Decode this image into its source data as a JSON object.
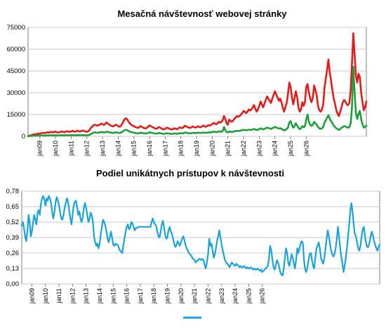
{
  "chart_data": [
    {
      "type": "line",
      "title": "Mesačná návštevnosť webovej stránky",
      "ylim": [
        0,
        75000
      ],
      "yticks": [
        0,
        15000,
        30000,
        45000,
        60000,
        75000
      ],
      "ytick_labels": [
        "0",
        "15000",
        "30000",
        "45000",
        "60000",
        "75000"
      ],
      "xlabels": [
        "jan09",
        "jan10",
        "jan11",
        "jan12",
        "jan13",
        "jan14",
        "jan15",
        "jan16",
        "jan17",
        "jan18",
        "jan19",
        "jan20",
        "jan21",
        "jan22",
        "jan23",
        "jan24",
        "jan25",
        "jan26"
      ],
      "x_start": "2008-04",
      "grid": true,
      "legend": "none",
      "series": [
        {
          "color": "#e31b1b",
          "values": [
            200,
            500,
            700,
            900,
            1200,
            1500,
            1300,
            1800,
            2000,
            1700,
            2100,
            2400,
            2300,
            2200,
            2600,
            2800,
            2500,
            2900,
            3100,
            2700,
            3000,
            3200,
            2800,
            2600,
            2900,
            3100,
            3400,
            3000,
            2800,
            3300,
            3500,
            3200,
            3000,
            3500,
            3800,
            3400,
            3200,
            3600,
            3900,
            3500,
            3300,
            3700,
            4000,
            3600,
            3400,
            3100,
            3500,
            4200,
            5800,
            6500,
            7500,
            8000,
            7800,
            7400,
            7600,
            8200,
            8700,
            8300,
            7900,
            8400,
            9500,
            8900,
            8200,
            7600,
            7200,
            6800,
            7300,
            8000,
            7600,
            7000,
            6600,
            7100,
            8500,
            10500,
            11800,
            12400,
            11500,
            10000,
            8800,
            8000,
            7400,
            7000,
            6500,
            6100,
            5800,
            6200,
            7000,
            6600,
            6000,
            5700,
            5400,
            5900,
            6800,
            7500,
            7100,
            6500,
            6000,
            5600,
            5200,
            5500,
            6400,
            6000,
            5500,
            5000,
            4800,
            5200,
            6000,
            5700,
            5300,
            5000,
            4700,
            5000,
            5600,
            5200,
            4900,
            5400,
            6200,
            5900,
            5600,
            6300,
            7300,
            6900,
            6400,
            6000,
            5800,
            6200,
            6800,
            6400,
            6000,
            6300,
            6900,
            6500,
            6200,
            6700,
            7400,
            7000,
            6600,
            7100,
            7700,
            7400,
            7800,
            8500,
            9200,
            8800,
            8300,
            8800,
            10000,
            9400,
            9900,
            11000,
            14000,
            12000,
            9000,
            8000,
            11500,
            10500,
            10000,
            11000,
            12000,
            13000,
            14000,
            13500,
            14000,
            15000,
            16000,
            17500,
            16800,
            16000,
            17000,
            18500,
            17800,
            18500,
            20000,
            21500,
            19000,
            17000,
            18500,
            21000,
            24000,
            22000,
            20000,
            22500,
            25000,
            27500,
            26000,
            24500,
            23000,
            26000,
            28500,
            31000,
            29000,
            26500,
            24500,
            26000,
            23500,
            20000,
            17000,
            20000,
            23000,
            29000,
            37000,
            34000,
            27000,
            22000,
            26000,
            31000,
            27000,
            20000,
            17000,
            18500,
            23500,
            21000,
            23500,
            34000,
            36000,
            30000,
            26000,
            23500,
            26500,
            35000,
            32000,
            28000,
            21000,
            18000,
            17000,
            18500,
            22000,
            33500,
            40000,
            46500,
            53000,
            44000,
            38000,
            32000,
            26000,
            22500,
            18000,
            15500,
            14000,
            17000,
            20000,
            23500,
            25000,
            24000,
            22000,
            21500,
            23000,
            32000,
            50000,
            71000,
            56000,
            42000,
            37000,
            43000,
            41000,
            30000,
            24000,
            18000,
            20000,
            24000
          ],
          "note": ""
        },
        {
          "color": "#1f9e3c",
          "values": [
            100,
            200,
            300,
            350,
            400,
            500,
            450,
            550,
            600,
            500,
            600,
            650,
            600,
            550,
            650,
            700,
            600,
            700,
            750,
            650,
            700,
            750,
            650,
            600,
            700,
            750,
            800,
            700,
            650,
            750,
            800,
            750,
            700,
            800,
            850,
            750,
            700,
            800,
            850,
            800,
            750,
            800,
            850,
            800,
            750,
            700,
            800,
            1000,
            1500,
            2000,
            2500,
            2800,
            2600,
            2400,
            2500,
            2800,
            3000,
            2800,
            2600,
            2800,
            3200,
            3000,
            2800,
            2600,
            2500,
            2300,
            2500,
            2800,
            2600,
            2400,
            2300,
            2500,
            3000,
            3800,
            4200,
            4500,
            4200,
            3600,
            3200,
            2900,
            2700,
            2500,
            2300,
            2200,
            2100,
            2200,
            2500,
            2400,
            2200,
            2100,
            2000,
            2100,
            2400,
            2700,
            2500,
            2300,
            2200,
            2000,
            1900,
            2000,
            2300,
            2200,
            2000,
            1800,
            1700,
            1900,
            2100,
            2000,
            1900,
            1800,
            1700,
            1800,
            2000,
            1900,
            1800,
            1900,
            2200,
            2100,
            2000,
            2200,
            2600,
            2500,
            2300,
            2200,
            2100,
            2200,
            2400,
            2300,
            2200,
            2300,
            2500,
            2400,
            2300,
            2400,
            2600,
            2500,
            2400,
            2500,
            2700,
            2600,
            2700,
            3000,
            3200,
            3100,
            2900,
            3000,
            3400,
            3200,
            3300,
            3600,
            6500,
            4200,
            3000,
            2700,
            3400,
            3100,
            3000,
            3200,
            3500,
            3600,
            3800,
            3700,
            3800,
            4000,
            4200,
            4500,
            4300,
            4100,
            4300,
            4600,
            4400,
            4500,
            4800,
            5100,
            4700,
            4300,
            4500,
            5000,
            5500,
            5100,
            4800,
            5200,
            5600,
            6000,
            5700,
            5400,
            5100,
            5600,
            6000,
            6500,
            6100,
            5700,
            5400,
            5600,
            5200,
            4600,
            4000,
            4500,
            5000,
            6000,
            9500,
            10500,
            8000,
            6000,
            7000,
            9000,
            7500,
            6000,
            5000,
            5500,
            7000,
            6200,
            7000,
            11500,
            15000,
            10000,
            8000,
            7200,
            8000,
            10000,
            9000,
            8000,
            6500,
            5500,
            5200,
            5500,
            6500,
            9500,
            11000,
            13000,
            14500,
            12000,
            10500,
            9000,
            7500,
            6500,
            5500,
            5000,
            4500,
            5000,
            6000,
            6500,
            7000,
            6800,
            6200,
            6000,
            6300,
            9000,
            20000,
            48000,
            30000,
            16000,
            12000,
            15500,
            17500,
            12000,
            8500,
            6000,
            6500,
            7500
          ]
        }
      ]
    },
    {
      "type": "line",
      "title": "Podiel unikátnych prístupov k návštevnosti",
      "ylim": [
        0,
        0.78
      ],
      "yticks": [
        0,
        0.13,
        0.26,
        0.39,
        0.52,
        0.65,
        0.78
      ],
      "ytick_labels": [
        "0,00",
        "0,13",
        "0,26",
        "0,39",
        "0,52",
        "0,65",
        "0,78"
      ],
      "xlabels": [
        "jan09",
        "jan10",
        "jan11",
        "jan12",
        "jan13",
        "jan14",
        "jan15",
        "jan16",
        "jan17",
        "jan18",
        "jan19",
        "jan20",
        "jan21",
        "jan22",
        "jan23",
        "jan24",
        "jan25",
        "jan26"
      ],
      "x_start": "2008-04",
      "grid": true,
      "legend": "bottom",
      "series": [
        {
          "color": "#1aa3d9",
          "values": [
            0.49,
            0.52,
            0.47,
            0.4,
            0.36,
            0.44,
            0.58,
            0.52,
            0.4,
            0.44,
            0.52,
            0.58,
            0.54,
            0.5,
            0.6,
            0.62,
            0.58,
            0.68,
            0.72,
            0.74,
            0.71,
            0.66,
            0.72,
            0.7,
            0.74,
            0.72,
            0.68,
            0.6,
            0.55,
            0.61,
            0.69,
            0.73,
            0.7,
            0.66,
            0.6,
            0.55,
            0.54,
            0.58,
            0.64,
            0.68,
            0.72,
            0.69,
            0.62,
            0.55,
            0.5,
            0.58,
            0.66,
            0.69,
            0.7,
            0.65,
            0.58,
            0.61,
            0.55,
            0.52,
            0.56,
            0.64,
            0.68,
            0.64,
            0.58,
            0.52,
            0.54,
            0.6,
            0.58,
            0.52,
            0.4,
            0.35,
            0.32,
            0.34,
            0.3,
            0.34,
            0.42,
            0.48,
            0.54,
            0.52,
            0.49,
            0.44,
            0.38,
            0.35,
            0.39,
            0.44,
            0.39,
            0.33,
            0.32,
            0.34,
            0.33,
            0.33,
            0.3,
            0.28,
            0.27,
            0.26,
            0.33,
            0.38,
            0.44,
            0.48,
            0.5,
            0.46,
            0.47,
            0.52,
            0.51,
            0.48,
            0.45,
            0.47,
            0.47,
            0.48,
            0.48,
            0.48,
            0.48,
            0.48,
            0.48,
            0.48,
            0.48,
            0.48,
            0.48,
            0.48,
            0.48,
            0.52,
            0.55,
            0.52,
            0.5,
            0.49,
            0.44,
            0.4,
            0.39,
            0.44,
            0.5,
            0.53,
            0.48,
            0.41,
            0.38,
            0.39,
            0.45,
            0.48,
            0.44,
            0.42,
            0.38,
            0.34,
            0.31,
            0.32,
            0.36,
            0.34,
            0.32,
            0.35,
            0.38,
            0.4,
            0.37,
            0.33,
            0.3,
            0.28,
            0.26,
            0.25,
            0.24,
            0.22,
            0.21,
            0.2,
            0.18,
            0.19,
            0.2,
            0.21,
            0.21,
            0.2,
            0.21,
            0.2,
            0.16,
            0.13,
            0.18,
            0.25,
            0.38,
            0.32,
            0.34,
            0.28,
            0.22,
            0.25,
            0.3,
            0.36,
            0.4,
            0.45,
            0.39,
            0.33,
            0.28,
            0.24,
            0.2,
            0.18,
            0.17,
            0.16,
            0.14,
            0.16,
            0.18,
            0.17,
            0.16,
            0.15,
            0.17,
            0.16,
            0.15,
            0.14,
            0.15,
            0.14,
            0.14,
            0.15,
            0.14,
            0.13,
            0.14,
            0.13,
            0.13,
            0.14,
            0.13,
            0.12,
            0.13,
            0.12,
            0.12,
            0.13,
            0.12,
            0.11,
            0.12,
            0.1,
            0.11,
            0.12,
            0.13,
            0.14,
            0.15,
            0.22,
            0.32,
            0.28,
            0.2,
            0.14,
            0.12,
            0.16,
            0.2,
            0.18,
            0.14,
            0.1,
            0.08,
            0.07,
            0.12,
            0.22,
            0.3,
            0.26,
            0.18,
            0.15,
            0.2,
            0.25,
            0.22,
            0.17,
            0.13,
            0.2,
            0.3,
            0.26,
            0.3,
            0.34,
            0.36,
            0.34,
            0.2,
            0.12,
            0.1,
            0.14,
            0.2,
            0.25,
            0.26,
            0.2,
            0.15,
            0.13,
            0.22,
            0.3,
            0.32,
            0.35,
            0.3,
            0.22,
            0.19,
            0.17,
            0.22,
            0.3,
            0.38,
            0.45,
            0.4,
            0.34,
            0.28,
            0.25,
            0.23,
            0.25,
            0.3,
            0.38,
            0.48,
            0.4,
            0.3,
            0.23,
            0.17,
            0.1,
            0.15,
            0.22,
            0.3,
            0.4,
            0.5,
            0.62,
            0.68,
            0.6,
            0.5,
            0.42,
            0.4,
            0.35,
            0.3,
            0.28,
            0.32,
            0.4,
            0.46,
            0.48,
            0.4,
            0.34,
            0.31,
            0.31,
            0.35,
            0.4,
            0.44,
            0.41,
            0.36,
            0.33,
            0.3,
            0.28,
            0.31,
            0.33
          ]
        }
      ]
    }
  ]
}
